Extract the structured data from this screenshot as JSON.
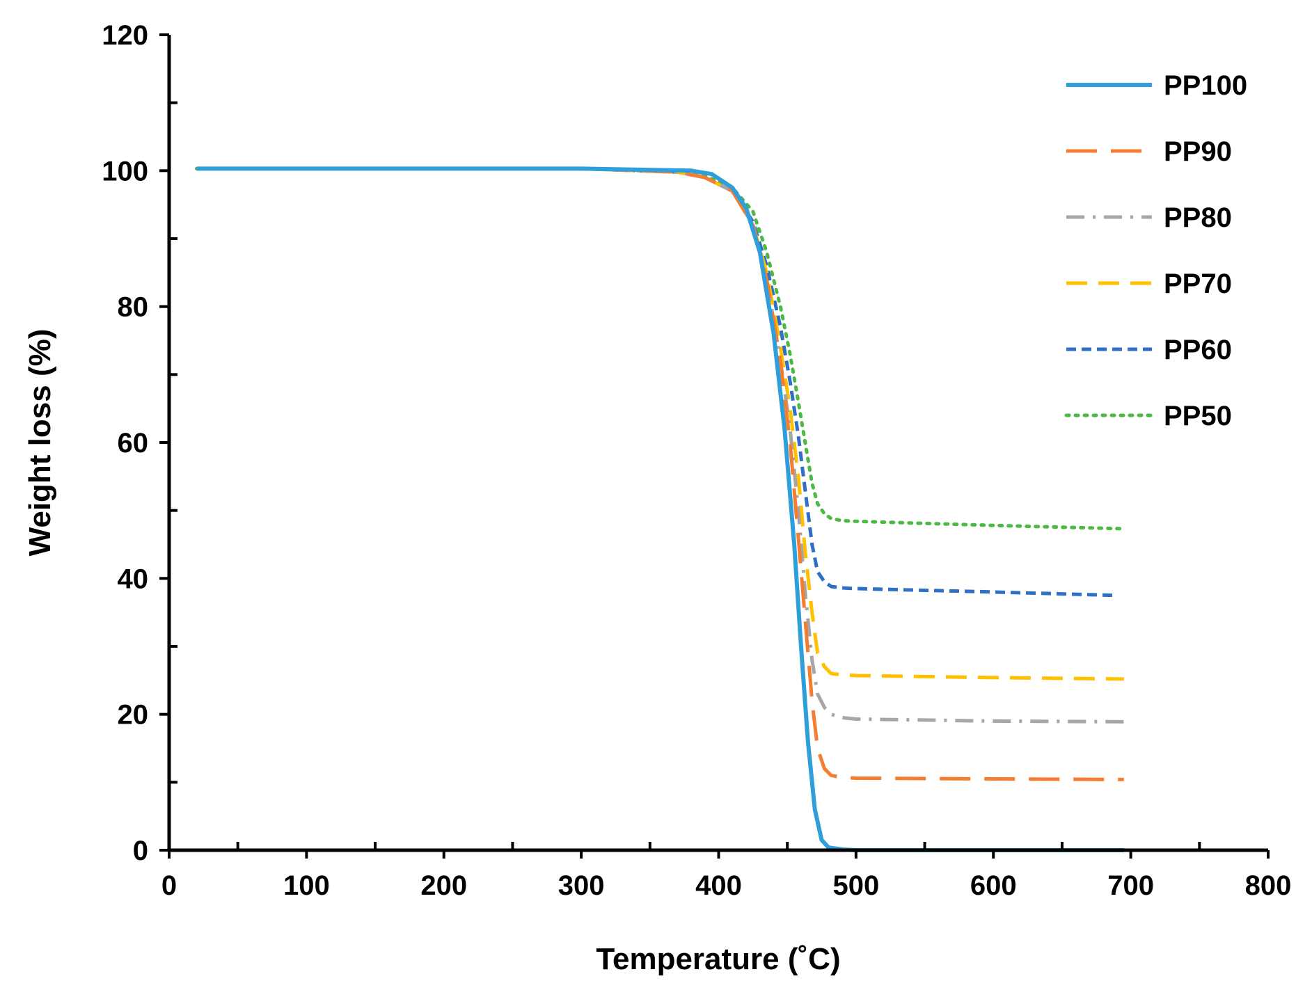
{
  "chart_data": {
    "type": "line",
    "title": "",
    "xlabel": "Temperature (˚C)",
    "ylabel": "Weight loss (%)",
    "xlim": [
      0,
      800
    ],
    "ylim": [
      0,
      120
    ],
    "x_ticks": [
      0,
      100,
      200,
      300,
      400,
      500,
      600,
      700,
      800
    ],
    "y_ticks": [
      0,
      20,
      40,
      60,
      80,
      100,
      120
    ],
    "x_tick_labels": [
      "0",
      "100",
      "200",
      "300",
      "400",
      "500",
      "600",
      "700",
      "800"
    ],
    "y_tick_labels": [
      "0",
      "20",
      "40",
      "60",
      "80",
      "100",
      "120"
    ],
    "grid": false,
    "legend_position": "top-right",
    "series": [
      {
        "name": "PP100",
        "color": "#2e9fdb",
        "dash": "solid",
        "x": [
          20,
          100,
          200,
          300,
          380,
          395,
          410,
          420,
          430,
          440,
          448,
          455,
          460,
          465,
          470,
          475,
          480,
          490,
          500,
          600,
          695
        ],
        "y": [
          100.3,
          100.3,
          100.3,
          100.3,
          100.0,
          99.5,
          97.5,
          94.5,
          88,
          76,
          62,
          45,
          30,
          16,
          6,
          1.5,
          0.4,
          0.1,
          0,
          0,
          0
        ]
      },
      {
        "name": "PP90",
        "color": "#f47d30",
        "dash": "long-dash",
        "x": [
          20,
          100,
          200,
          300,
          370,
          390,
          410,
          425,
          435,
          445,
          452,
          458,
          463,
          468,
          472,
          477,
          482,
          490,
          500,
          600,
          695
        ],
        "y": [
          100.3,
          100.3,
          100.3,
          100.3,
          99.8,
          99,
          97,
          92,
          84,
          72,
          60,
          46,
          34,
          22,
          15,
          12,
          11,
          10.7,
          10.6,
          10.5,
          10.4
        ]
      },
      {
        "name": "PP80",
        "color": "#a6a6a6",
        "dash": "dash-dot",
        "x": [
          20,
          100,
          200,
          300,
          370,
          390,
          410,
          425,
          435,
          445,
          452,
          458,
          463,
          468,
          472,
          477,
          482,
          490,
          500,
          600,
          695
        ],
        "y": [
          100.3,
          100.3,
          100.3,
          100.3,
          99.8,
          99,
          97,
          92,
          84,
          72,
          62,
          50,
          38,
          28,
          23,
          21,
          20,
          19.5,
          19.3,
          19,
          18.9
        ]
      },
      {
        "name": "PP70",
        "color": "#ffc000",
        "dash": "dash",
        "x": [
          20,
          100,
          200,
          300,
          370,
          390,
          410,
          425,
          435,
          445,
          452,
          458,
          463,
          468,
          472,
          477,
          482,
          490,
          500,
          600,
          695
        ],
        "y": [
          100.3,
          100.3,
          100.3,
          100.3,
          99.8,
          99,
          97,
          92,
          85,
          74,
          65,
          55,
          44,
          35,
          29,
          27,
          26,
          25.8,
          25.7,
          25.4,
          25.2
        ]
      },
      {
        "name": "PP60",
        "color": "#2f6fc4",
        "dash": "short-dash",
        "x": [
          20,
          100,
          200,
          300,
          370,
          390,
          410,
          425,
          435,
          445,
          452,
          458,
          463,
          468,
          472,
          477,
          482,
          490,
          500,
          600,
          690
        ],
        "y": [
          100.3,
          100.3,
          100.3,
          100.3,
          99.8,
          99,
          97,
          92.5,
          86,
          77,
          69,
          61,
          53,
          45,
          41,
          39.5,
          38.8,
          38.6,
          38.5,
          38,
          37.5
        ]
      },
      {
        "name": "PP50",
        "color": "#4cb944",
        "dash": "dot",
        "x": [
          20,
          100,
          200,
          300,
          370,
          390,
          410,
          425,
          435,
          445,
          452,
          458,
          463,
          468,
          472,
          477,
          482,
          490,
          500,
          600,
          695
        ],
        "y": [
          100.3,
          100.3,
          100.3,
          100.3,
          99.8,
          99.2,
          97.5,
          94,
          88,
          80,
          73,
          66,
          60,
          54,
          51,
          49.5,
          48.8,
          48.5,
          48.4,
          47.8,
          47.3
        ]
      }
    ]
  }
}
